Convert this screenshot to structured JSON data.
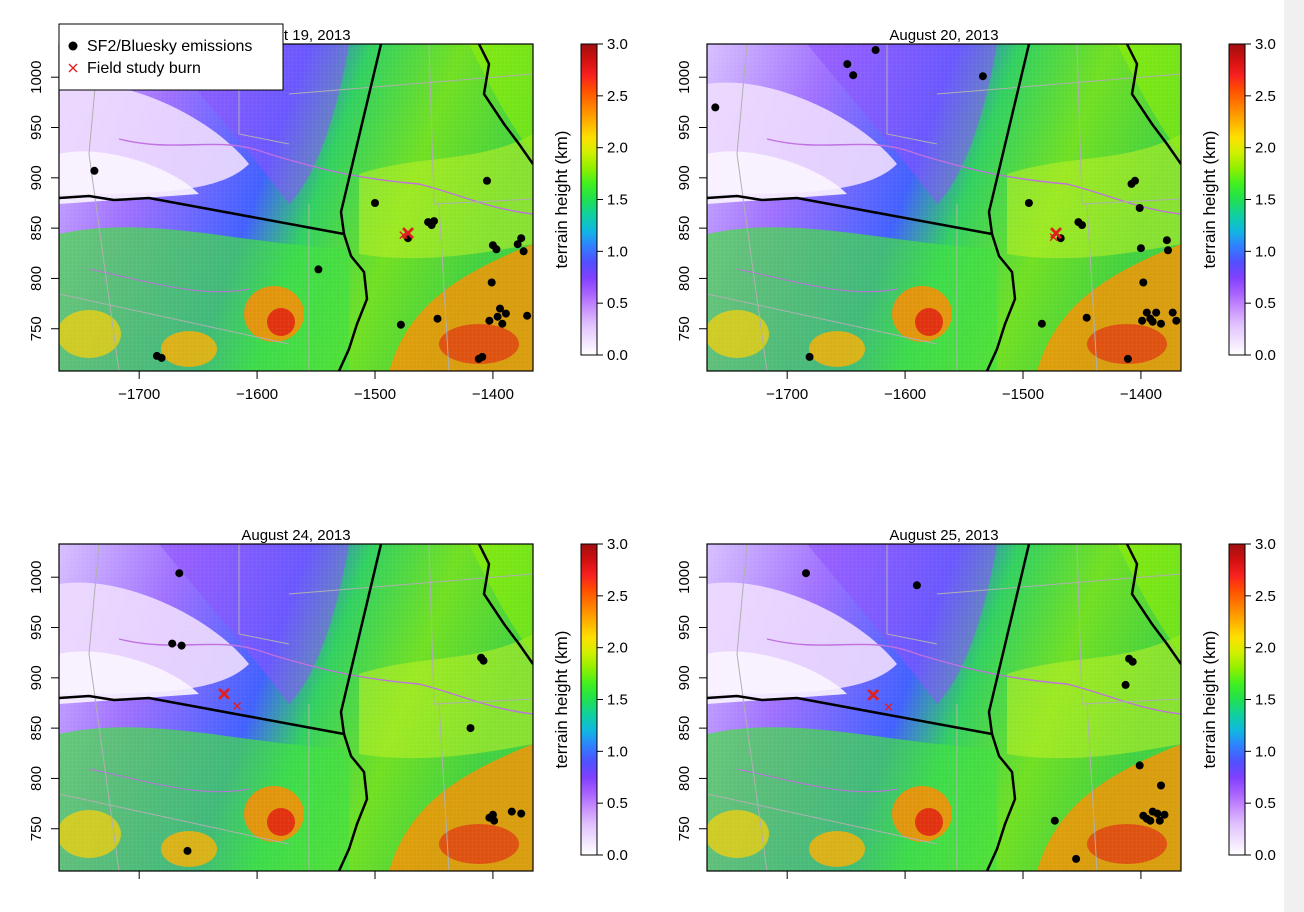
{
  "panels": [
    {
      "title": "August 19, 2013",
      "show_legend": true,
      "show_xticklabels": true,
      "emissions": [
        [
          -1738,
          907
        ],
        [
          -1685,
          723
        ],
        [
          -1681,
          721
        ],
        [
          -1548,
          809
        ],
        [
          -1500,
          875
        ],
        [
          -1478,
          754
        ],
        [
          -1472,
          840
        ],
        [
          -1455,
          856
        ],
        [
          -1452,
          853
        ],
        [
          -1450,
          857
        ],
        [
          -1447,
          760
        ],
        [
          -1412,
          720
        ],
        [
          -1409,
          722
        ],
        [
          -1405,
          897
        ],
        [
          -1403,
          758
        ],
        [
          -1400,
          833
        ],
        [
          -1397,
          829
        ],
        [
          -1396,
          762
        ],
        [
          -1401,
          796
        ],
        [
          -1394,
          770
        ],
        [
          -1392,
          755
        ],
        [
          -1379,
          834
        ],
        [
          -1376,
          840
        ],
        [
          -1374,
          827
        ],
        [
          -1371,
          763
        ],
        [
          -1389,
          765
        ]
      ],
      "burns": [
        [
          -1472,
          845
        ],
        [
          -1476,
          843
        ]
      ]
    },
    {
      "title": "August 20, 2013",
      "show_legend": false,
      "show_xticklabels": true,
      "emissions": [
        [
          -1761,
          970
        ],
        [
          -1681,
          722
        ],
        [
          -1649,
          1013
        ],
        [
          -1644,
          1002
        ],
        [
          -1625,
          1027
        ],
        [
          -1534,
          1001
        ],
        [
          -1495,
          875
        ],
        [
          -1484,
          755
        ],
        [
          -1468,
          840
        ],
        [
          -1453,
          856
        ],
        [
          -1450,
          853
        ],
        [
          -1446,
          761
        ],
        [
          -1411,
          720
        ],
        [
          -1408,
          894
        ],
        [
          -1405,
          897
        ],
        [
          -1401,
          870
        ],
        [
          -1400,
          830
        ],
        [
          -1398,
          796
        ],
        [
          -1399,
          758
        ],
        [
          -1395,
          766
        ],
        [
          -1392,
          760
        ],
        [
          -1390,
          757
        ],
        [
          -1387,
          766
        ],
        [
          -1383,
          755
        ],
        [
          -1378,
          838
        ],
        [
          -1377,
          828
        ],
        [
          -1373,
          766
        ],
        [
          -1370,
          758
        ]
      ],
      "burns": [
        [
          -1472,
          845
        ],
        [
          -1474,
          841
        ]
      ]
    },
    {
      "title": "August 24, 2013",
      "show_legend": false,
      "show_xticklabels": false,
      "emissions": [
        [
          -1666,
          1004
        ],
        [
          -1672,
          934
        ],
        [
          -1664,
          932
        ],
        [
          -1659,
          728
        ],
        [
          -1419,
          850
        ],
        [
          -1410,
          920
        ],
        [
          -1408,
          917
        ],
        [
          -1403,
          761
        ],
        [
          -1400,
          764
        ],
        [
          -1399,
          758
        ],
        [
          -1384,
          767
        ],
        [
          -1376,
          765
        ]
      ],
      "burns": [
        [
          -1628,
          884
        ],
        [
          -1617,
          872
        ]
      ]
    },
    {
      "title": "August 25, 2013",
      "show_legend": false,
      "show_xticklabels": false,
      "emissions": [
        [
          -1684,
          1004
        ],
        [
          -1590,
          992
        ],
        [
          -1473,
          758
        ],
        [
          -1455,
          720
        ],
        [
          -1410,
          919
        ],
        [
          -1407,
          916
        ],
        [
          -1413,
          893
        ],
        [
          -1401,
          813
        ],
        [
          -1398,
          763
        ],
        [
          -1395,
          760
        ],
        [
          -1392,
          758
        ],
        [
          -1390,
          767
        ],
        [
          -1386,
          765
        ],
        [
          -1383,
          793
        ],
        [
          -1380,
          764
        ],
        [
          -1384,
          758
        ]
      ],
      "burns": [
        [
          -1627,
          883
        ],
        [
          -1614,
          871
        ]
      ]
    }
  ],
  "x_axis": {
    "ticks": [
      -1700,
      -1600,
      -1500,
      -1400
    ],
    "tick_labels": [
      "−1700",
      "−1600",
      "−1500",
      "−1400"
    ],
    "range": [
      -1768,
      -1366
    ]
  },
  "y_axis": {
    "ticks": [
      750,
      800,
      850,
      900,
      950,
      1000
    ],
    "tick_labels": [
      "750",
      "800",
      "850",
      "900",
      "950",
      "1000"
    ],
    "range": [
      708,
      1033
    ]
  },
  "colorbar": {
    "label": "terrain height (km)",
    "ticks": [
      "3.0",
      "2.5",
      "2.0",
      "1.5",
      "1.0",
      "0.5",
      "0.0"
    ],
    "range": [
      0,
      3.0
    ],
    "colors": [
      "#ffffff",
      "#f0e0ff",
      "#e0c0ff",
      "#c890ff",
      "#a860ff",
      "#8040ff",
      "#5050ff",
      "#3080ff",
      "#10b8e0",
      "#10d0a0",
      "#20e050",
      "#40f020",
      "#90f000",
      "#d0f000",
      "#ffe000",
      "#ffb000",
      "#ff8000",
      "#ff5000",
      "#f82020",
      "#d01010",
      "#a01010"
    ]
  },
  "legend": {
    "items": [
      {
        "label": "SF2/Bluesky emissions",
        "symbol": "dot",
        "color": "#000000"
      },
      {
        "label": "Field study burn",
        "symbol": "x",
        "color": "#e02020"
      }
    ]
  },
  "map_lines": {
    "boundary_color": "#000000",
    "minor_color": "#b0b0b0",
    "stream_color": "#c070e0"
  }
}
